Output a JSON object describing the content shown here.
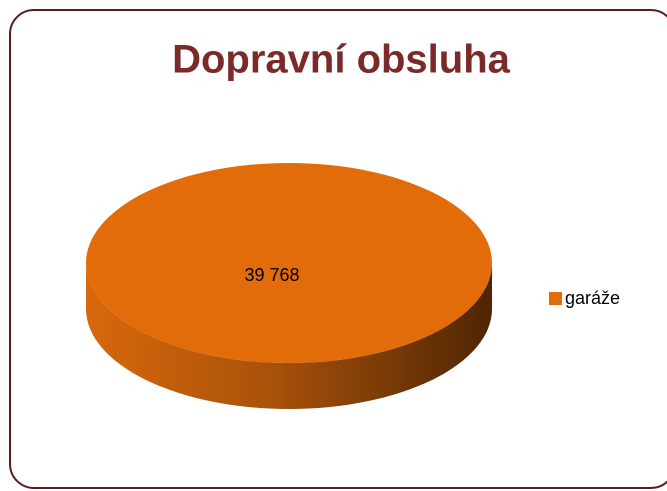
{
  "chart_data": {
    "type": "pie",
    "title": "Dopravní obsluha",
    "categories": [
      "garáže"
    ],
    "values": [
      39768
    ],
    "value_labels": [
      "39 768"
    ],
    "colors": [
      "#e36c0a"
    ],
    "legend": "right",
    "three_d": true
  }
}
